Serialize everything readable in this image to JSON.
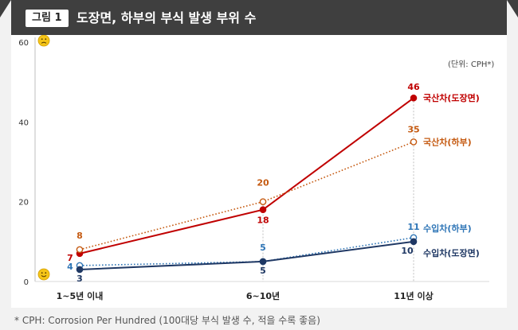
{
  "header": {
    "badge": "그림 1",
    "title": "도장면, 하부의 부식 발생 부위 수",
    "unit": "(단위: CPH*)"
  },
  "footnote": "* CPH: Corrosion Per Hundred (100대당 부식 발생 수, 적을 수록 좋음)",
  "icons": {
    "top": "sad-face-icon",
    "bottom": "happy-face-icon"
  },
  "colors": {
    "domestic_paint": "#c00000",
    "domestic_under": "#c55a11",
    "import_under": "#2e75b6",
    "import_paint": "#1f3864"
  },
  "chart_data": {
    "type": "line",
    "categories": [
      "1~5년 이내",
      "6~10년",
      "11년 이상"
    ],
    "ylim": [
      0,
      60
    ],
    "yticks": [
      0,
      20,
      40,
      60
    ],
    "series": [
      {
        "name": "국산차(도장면)",
        "values": [
          7,
          18,
          46
        ],
        "color": "#c00000",
        "style": "solid",
        "marker": "filled"
      },
      {
        "name": "국산차(하부)",
        "values": [
          8,
          20,
          35
        ],
        "color": "#c55a11",
        "style": "dotted",
        "marker": "open"
      },
      {
        "name": "수입차(하부)",
        "values": [
          4,
          5,
          11
        ],
        "color": "#2e75b6",
        "style": "dotted",
        "marker": "open"
      },
      {
        "name": "수입차(도장면)",
        "values": [
          3,
          5,
          10
        ],
        "color": "#1f3864",
        "style": "solid",
        "marker": "filled"
      }
    ]
  }
}
